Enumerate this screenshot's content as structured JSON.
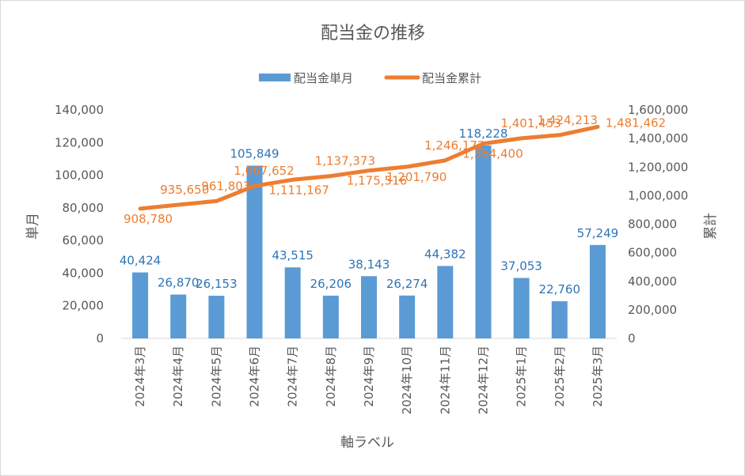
{
  "chart_data": {
    "type": "bar+line",
    "title": "配当金の推移",
    "categories": [
      "2024年3月",
      "2024年4月",
      "2024年5月",
      "2024年6月",
      "2024年7月",
      "2024年8月",
      "2024年9月",
      "2024年10月",
      "2024年11月",
      "2024年12月",
      "2025年1月",
      "2025年2月",
      "2025年3月"
    ],
    "series": [
      {
        "name": "配当金単月",
        "type": "bar",
        "axis": "left",
        "color": "#5b9bd5",
        "label_color": "#2e75b6",
        "values": [
          40424,
          26870,
          26153,
          105849,
          43515,
          26206,
          38143,
          26274,
          44382,
          118228,
          37053,
          22760,
          57249
        ],
        "labels": [
          "40,424",
          "26,870",
          "26,153",
          "105,849",
          "43,515",
          "26,206",
          "38,143",
          "26,274",
          "44,382",
          "118,228",
          "37,053",
          "22,760",
          "57,249"
        ]
      },
      {
        "name": "配当金累計",
        "type": "line",
        "axis": "right",
        "color": "#ed7d31",
        "values": [
          908780,
          935650,
          961803,
          1067652,
          1111167,
          1137373,
          1175516,
          1201790,
          1246172,
          1364400,
          1401453,
          1424213,
          1481462
        ],
        "labels": [
          "908,780",
          "935,650",
          "961,803",
          "1,067,652",
          "1,111,167",
          "1,137,373",
          "1,175,516",
          "1,201,790",
          "1,246,172",
          "1,364,400",
          "1,401,453",
          "1,424,213",
          "1,481,462"
        ]
      }
    ],
    "y_left": {
      "label": "単月",
      "ylim": [
        0,
        140000
      ],
      "ticks": [
        "0",
        "20,000",
        "40,000",
        "60,000",
        "80,000",
        "100,000",
        "120,000",
        "140,000"
      ]
    },
    "y_right": {
      "label": "累計",
      "ylim": [
        0,
        1600000
      ],
      "ticks": [
        "0",
        "200,000",
        "400,000",
        "600,000",
        "800,000",
        "1,000,000",
        "1,200,000",
        "1,400,000",
        "1,600,000"
      ]
    },
    "xlabel": "軸ラベル",
    "legend_position": "top",
    "grid": false
  }
}
